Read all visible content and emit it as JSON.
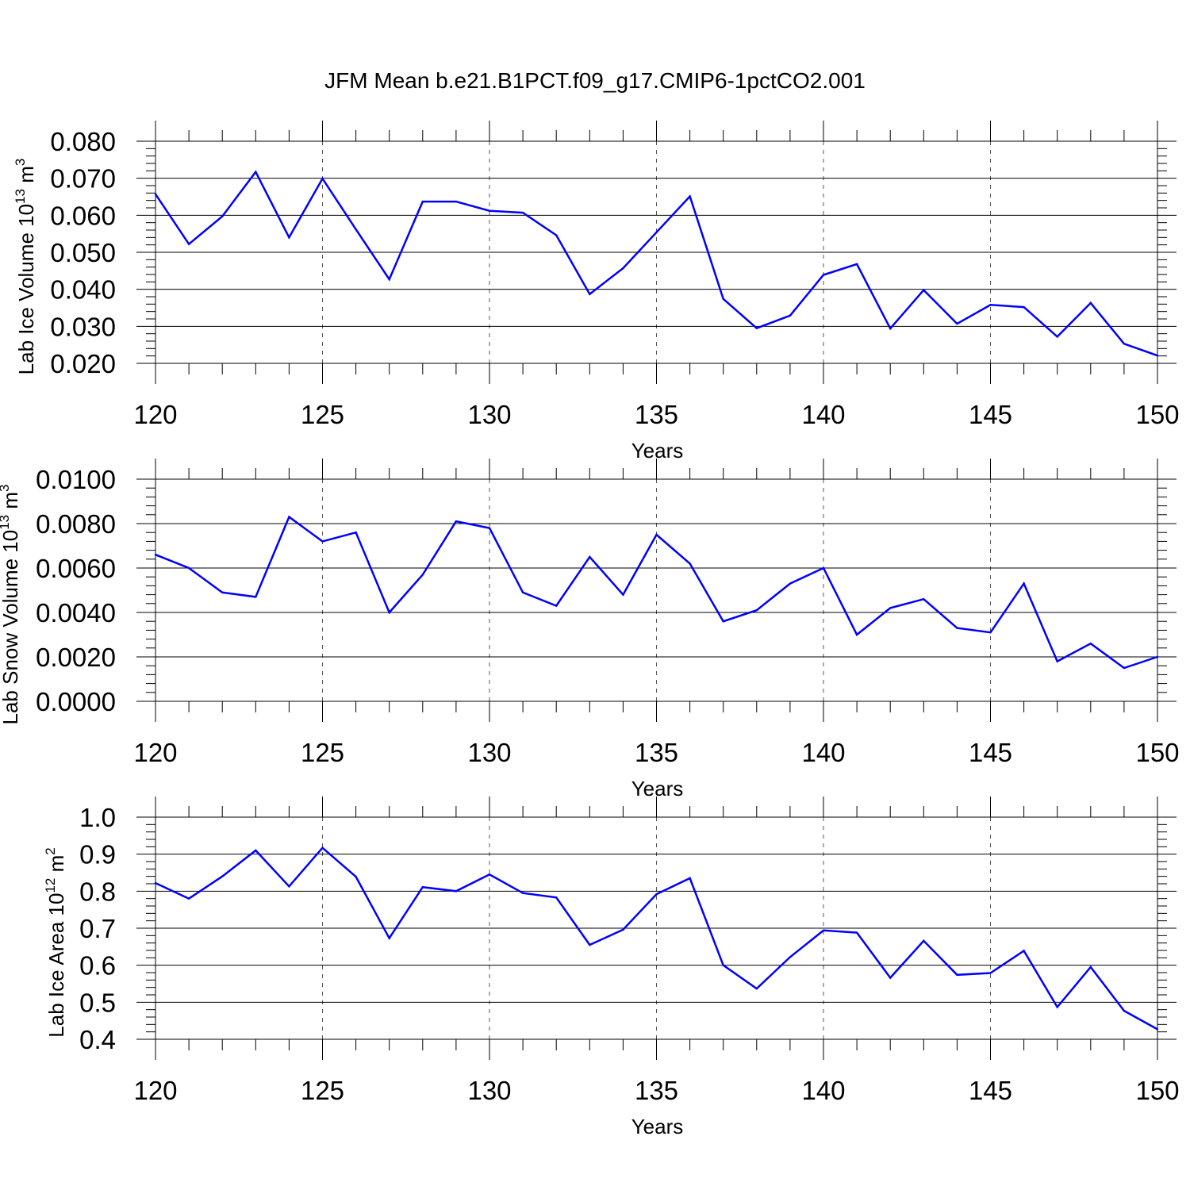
{
  "title": "JFM Mean b.e21.B1PCT.f09_g17.CMIP6-1pctCO2.001",
  "colors": {
    "line": "#0000ff",
    "axis": "#000000",
    "grid": "#555555"
  },
  "chart_data": [
    {
      "type": "line",
      "ylabel": {
        "text": "Lab Ice Volume 10",
        "exponent": "13",
        "unit": " m",
        "unit_exponent": "3"
      },
      "xlabel": "Years",
      "xlim": [
        120,
        150
      ],
      "ylim": [
        0.02,
        0.08
      ],
      "xticks": [
        120,
        125,
        130,
        135,
        140,
        145,
        150
      ],
      "xtick_labels": [
        "120",
        "125",
        "130",
        "135",
        "140",
        "145",
        "150"
      ],
      "yticks": [
        0.02,
        0.03,
        0.04,
        0.05,
        0.06,
        0.07,
        0.08
      ],
      "ytick_labels": [
        "0.020",
        "0.030",
        "0.040",
        "0.050",
        "0.060",
        "0.070",
        "0.080"
      ],
      "grid_x": [
        125,
        130,
        135,
        140,
        145
      ],
      "x": [
        120,
        121,
        122,
        123,
        124,
        125,
        126,
        127,
        128,
        129,
        130,
        131,
        132,
        133,
        134,
        135,
        136,
        137,
        138,
        139,
        140,
        141,
        142,
        143,
        144,
        145,
        146,
        147,
        148,
        149,
        150
      ],
      "y": [
        0.0657,
        0.0522,
        0.0597,
        0.0717,
        0.054,
        0.0699,
        0.0562,
        0.0427,
        0.0637,
        0.0637,
        0.0612,
        0.0607,
        0.0546,
        0.0387,
        0.0457,
        0.0554,
        0.0651,
        0.0374,
        0.0295,
        0.0329,
        0.0439,
        0.0468,
        0.0294,
        0.0398,
        0.0307,
        0.0358,
        0.0352,
        0.0272,
        0.0363,
        0.0253,
        0.0221
      ]
    },
    {
      "type": "line",
      "ylabel": {
        "text": "Lab Snow Volume 10",
        "exponent": "13",
        "unit": " m",
        "unit_exponent": "3"
      },
      "xlabel": "Years",
      "xlim": [
        120,
        150
      ],
      "ylim": [
        0.0,
        0.01
      ],
      "xticks": [
        120,
        125,
        130,
        135,
        140,
        145,
        150
      ],
      "xtick_labels": [
        "120",
        "125",
        "130",
        "135",
        "140",
        "145",
        "150"
      ],
      "yticks": [
        0.0,
        0.002,
        0.004,
        0.006,
        0.008,
        0.01
      ],
      "ytick_labels": [
        "0.0000",
        "0.0020",
        "0.0040",
        "0.0060",
        "0.0080",
        "0.0100"
      ],
      "grid_x": [
        125,
        130,
        135,
        140,
        145
      ],
      "x": [
        120,
        121,
        122,
        123,
        124,
        125,
        126,
        127,
        128,
        129,
        130,
        131,
        132,
        133,
        134,
        135,
        136,
        137,
        138,
        139,
        140,
        141,
        142,
        143,
        144,
        145,
        146,
        147,
        148,
        149,
        150
      ],
      "y": [
        0.0066,
        0.006,
        0.0049,
        0.0047,
        0.0083,
        0.0072,
        0.0076,
        0.004,
        0.0057,
        0.0081,
        0.0078,
        0.0049,
        0.0043,
        0.0065,
        0.0048,
        0.0075,
        0.0062,
        0.0036,
        0.0041,
        0.0053,
        0.006,
        0.003,
        0.0042,
        0.0046,
        0.0033,
        0.0031,
        0.0053,
        0.0018,
        0.0026,
        0.0015,
        0.002
      ]
    },
    {
      "type": "line",
      "ylabel": {
        "text": "Lab Ice Area 10",
        "exponent": "12",
        "unit": " m",
        "unit_exponent": "2"
      },
      "xlabel": "Years",
      "xlim": [
        120,
        150
      ],
      "ylim": [
        0.4,
        1.0
      ],
      "xticks": [
        120,
        125,
        130,
        135,
        140,
        145,
        150
      ],
      "xtick_labels": [
        "120",
        "125",
        "130",
        "135",
        "140",
        "145",
        "150"
      ],
      "yticks": [
        0.4,
        0.5,
        0.6,
        0.7,
        0.8,
        0.9,
        1.0
      ],
      "ytick_labels": [
        "0.4",
        "0.5",
        "0.6",
        "0.7",
        "0.8",
        "0.9",
        "1.0"
      ],
      "grid_x": [
        125,
        130,
        135,
        140,
        145
      ],
      "x": [
        120,
        121,
        122,
        123,
        124,
        125,
        126,
        127,
        128,
        129,
        130,
        131,
        132,
        133,
        134,
        135,
        136,
        137,
        138,
        139,
        140,
        141,
        142,
        143,
        144,
        145,
        146,
        147,
        148,
        149,
        150
      ],
      "y": [
        0.822,
        0.78,
        0.84,
        0.91,
        0.813,
        0.917,
        0.839,
        0.673,
        0.811,
        0.8,
        0.845,
        0.795,
        0.783,
        0.655,
        0.696,
        0.792,
        0.835,
        0.6,
        0.537,
        0.622,
        0.694,
        0.688,
        0.566,
        0.666,
        0.574,
        0.579,
        0.639,
        0.487,
        0.595,
        0.477,
        0.427
      ]
    }
  ]
}
